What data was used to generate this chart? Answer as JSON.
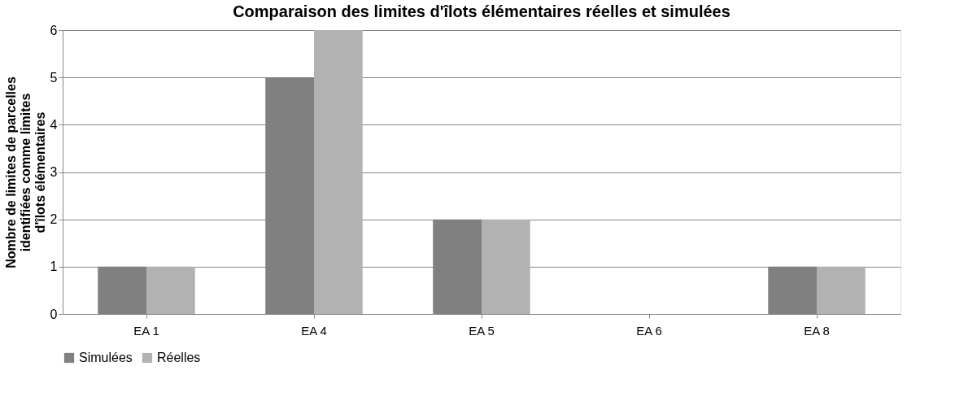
{
  "chart_data": {
    "type": "bar",
    "title": "Comparaison des limites d'îlots élémentaires réelles et simulées",
    "ylabel": "Nombre de limites de parcelles\nidentifiées comme limites\nd'îlots élémentaires",
    "categories": [
      "EA 1",
      "EA 4",
      "EA 5",
      "EA 6",
      "EA 8"
    ],
    "series": [
      {
        "name": "Simulées",
        "color": "#808080",
        "values": [
          1,
          5,
          2,
          0,
          1
        ]
      },
      {
        "name": "Réelles",
        "color": "#b2b2b2",
        "values": [
          1,
          6,
          2,
          0,
          1
        ]
      }
    ],
    "ylim": [
      0,
      6
    ],
    "yticks": [
      0,
      1,
      2,
      3,
      4,
      5,
      6
    ],
    "grid": "y",
    "legend": "bottom"
  }
}
